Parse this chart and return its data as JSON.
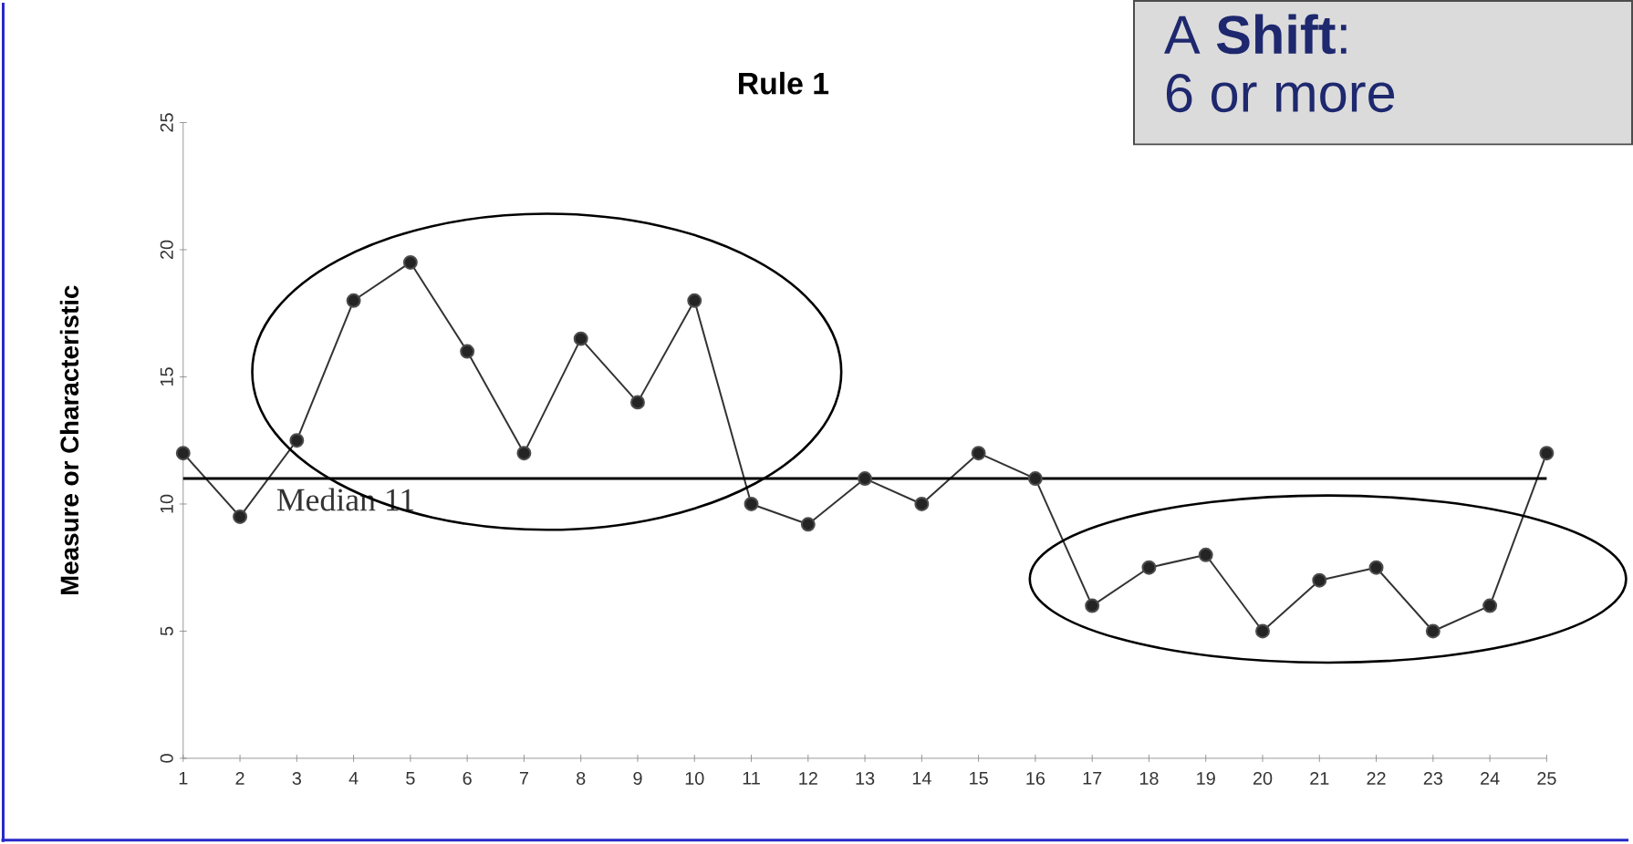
{
  "chart_data": {
    "type": "line",
    "title": "Rule 1",
    "ylabel": "Measure or Characteristic",
    "x": [
      1,
      2,
      3,
      4,
      5,
      6,
      7,
      8,
      9,
      10,
      11,
      12,
      13,
      14,
      15,
      16,
      17,
      18,
      19,
      20,
      21,
      22,
      23,
      24,
      25
    ],
    "series": [
      {
        "color": "#333333",
        "values": [
          12,
          9.5,
          12.5,
          18,
          19.5,
          16,
          12,
          16.5,
          14,
          18,
          10,
          9.2,
          11,
          10,
          12,
          11,
          6,
          7.5,
          8,
          5,
          7,
          7.5,
          5,
          6,
          12
        ]
      }
    ],
    "xlim": [
      1,
      25
    ],
    "ylim": [
      0,
      25
    ],
    "xticks": [
      1,
      2,
      3,
      4,
      5,
      6,
      7,
      8,
      9,
      10,
      11,
      12,
      13,
      14,
      15,
      16,
      17,
      18,
      19,
      20,
      21,
      22,
      23,
      24,
      25
    ],
    "yticks": [
      0,
      5,
      10,
      15,
      20,
      25
    ],
    "ref_lines": [
      {
        "axis": "y",
        "value": 11,
        "label": "Median 11",
        "color": "#000000"
      }
    ],
    "annotations": [
      "A **Shift**:",
      "6 or more"
    ],
    "marker": "circle",
    "line_style": "solid"
  }
}
